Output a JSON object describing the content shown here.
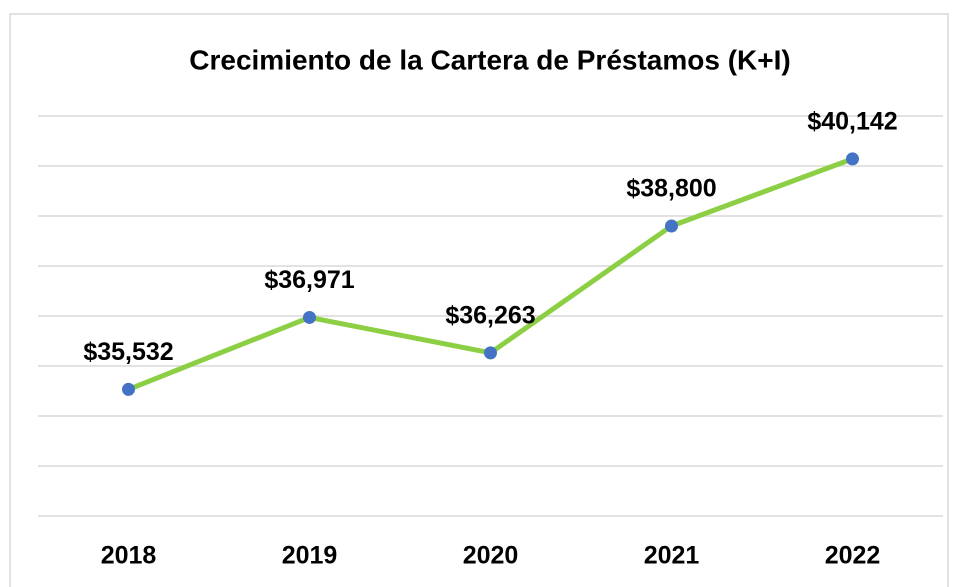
{
  "chart_data": {
    "type": "line",
    "title": "Crecimiento de la Cartera de Préstamos (K+I)",
    "categories": [
      "2018",
      "2019",
      "2020",
      "2021",
      "2022"
    ],
    "series": [
      {
        "color": "#8ccf45",
        "marker_color": "#4472c4",
        "values": [
          35532,
          36971,
          36263,
          38800,
          40142
        ],
        "value_labels": [
          "$35,532",
          "$36,971",
          "$36,263",
          "$38,800",
          "$40,142"
        ]
      }
    ],
    "ylim": [
      33000,
      41000
    ],
    "yticks": [
      33000,
      34000,
      35000,
      36000,
      37000,
      38000,
      39000,
      40000,
      41000
    ],
    "grid": true
  }
}
